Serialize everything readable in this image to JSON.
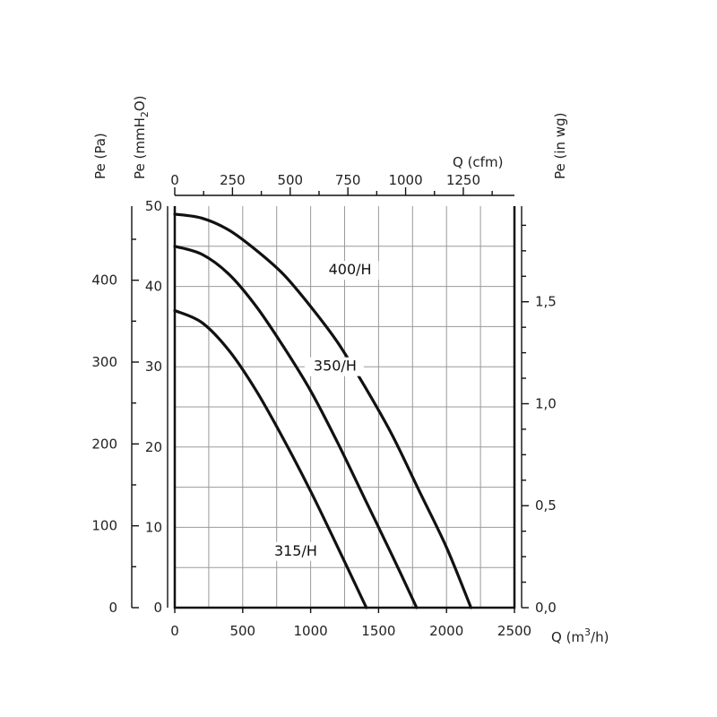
{
  "chart_data": {
    "type": "line",
    "x_axis": {
      "label": "Q (m",
      "label_sup": "3",
      "label_end": "/h)",
      "range": [
        0,
        2500
      ],
      "ticks": [
        0,
        500,
        1000,
        1500,
        2000,
        2500
      ]
    },
    "top_axis": {
      "label": "Q (cfm)",
      "range": [
        0,
        1471.5
      ],
      "ticks": [
        0,
        250,
        500,
        750,
        1000,
        1250
      ]
    },
    "y_axis_pa": {
      "label": "Pe (Pa)",
      "range": [
        0,
        490.5
      ],
      "ticks": [
        0,
        100,
        200,
        300,
        400
      ]
    },
    "y_axis_mmh2o": {
      "label": "Pe (mmH",
      "label_sub": "2",
      "label_end": "O)",
      "range": [
        0,
        50
      ],
      "ticks": [
        0,
        10,
        20,
        30,
        40,
        50
      ]
    },
    "y_axis_inwg": {
      "label": "Pe (in wg)",
      "range": [
        0,
        1.969
      ],
      "ticks": [
        "0,0",
        "0,5",
        "1,0",
        "1,5"
      ],
      "tick_values": [
        0,
        0.5,
        1.0,
        1.5
      ]
    },
    "grid": true,
    "series": [
      {
        "name": "400/H",
        "x": [
          0,
          200,
          400,
          600,
          800,
          1000,
          1200,
          1400,
          1600,
          1800,
          2000,
          2180
        ],
        "y": [
          49,
          48.5,
          47.0,
          44.5,
          41.5,
          37.5,
          33.0,
          27.5,
          21.5,
          14.5,
          7.5,
          0
        ]
      },
      {
        "name": "350/H",
        "x": [
          0,
          200,
          400,
          600,
          800,
          1000,
          1200,
          1400,
          1600,
          1780
        ],
        "y": [
          45,
          44.0,
          41.5,
          37.5,
          32.5,
          27.0,
          20.5,
          13.5,
          6.5,
          0
        ]
      },
      {
        "name": "315/H",
        "x": [
          0,
          200,
          400,
          600,
          800,
          1000,
          1200,
          1410
        ],
        "y": [
          37,
          35.5,
          32.0,
          27.0,
          21.0,
          14.5,
          7.5,
          0
        ]
      }
    ]
  }
}
